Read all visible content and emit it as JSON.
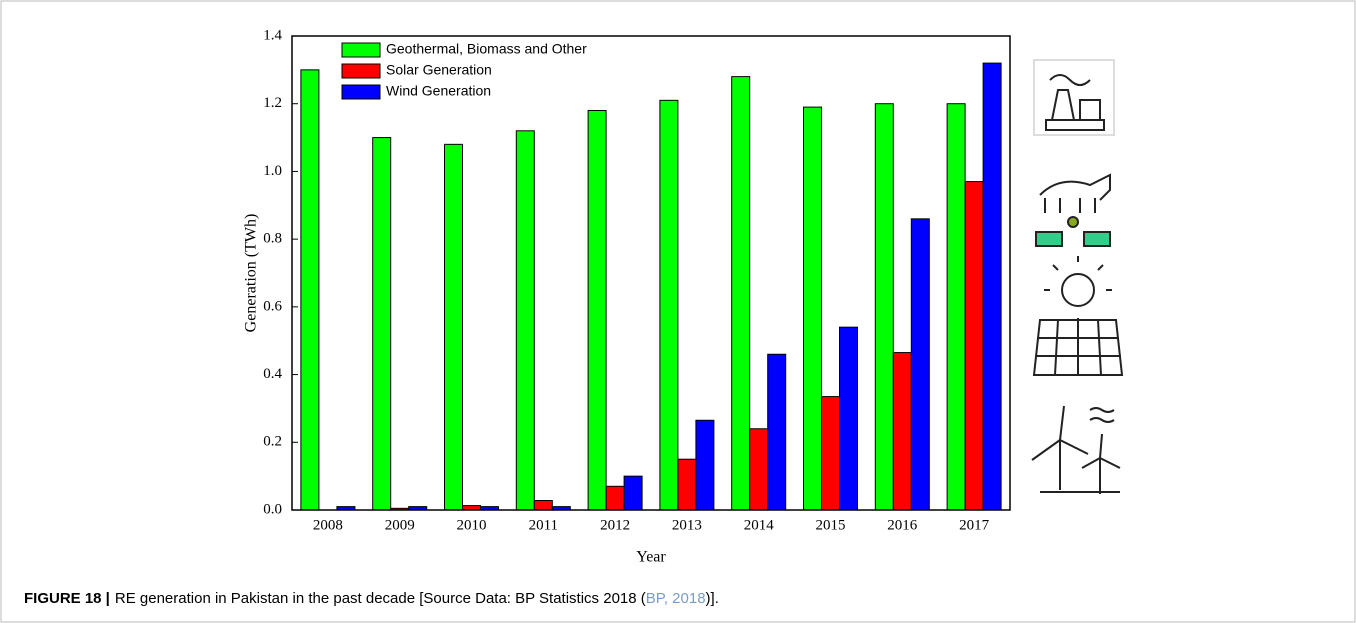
{
  "chart_data": {
    "type": "bar",
    "x_label": "Year",
    "y_label": "Generation (TWh)",
    "categories": [
      "2008",
      "2009",
      "2010",
      "2011",
      "2012",
      "2013",
      "2014",
      "2015",
      "2016",
      "2017"
    ],
    "series": [
      {
        "name": "Geothermal, Biomass and Other",
        "color": "#00ff00",
        "values": [
          1.3,
          1.1,
          1.08,
          1.12,
          1.18,
          1.21,
          1.28,
          1.19,
          1.2,
          1.2
        ]
      },
      {
        "name": "Solar Generation",
        "color": "#ff0000",
        "values": [
          0,
          0.005,
          0.013,
          0.028,
          0.07,
          0.15,
          0.24,
          0.335,
          0.465,
          0.97
        ]
      },
      {
        "name": "Wind Generation",
        "color": "#0000ff",
        "values": [
          0.01,
          0.01,
          0.01,
          0.01,
          0.1,
          0.265,
          0.46,
          0.54,
          0.86,
          1.32
        ]
      }
    ],
    "ylim": [
      0,
      1.4
    ],
    "yticks": [
      {
        "value": 0,
        "label": "0.0"
      },
      0.2,
      0.4,
      0.6,
      0.8,
      {
        "value": 1,
        "label": "1.0"
      },
      1.2,
      1.4
    ],
    "legend": "top-left"
  },
  "caption": {
    "label": "FIGURE 18 |",
    "text": "RE generation in Pakistan in the past decade [Source Data: BP Statistics 2018 (",
    "link": "BP, 2018",
    "end": ")]."
  }
}
